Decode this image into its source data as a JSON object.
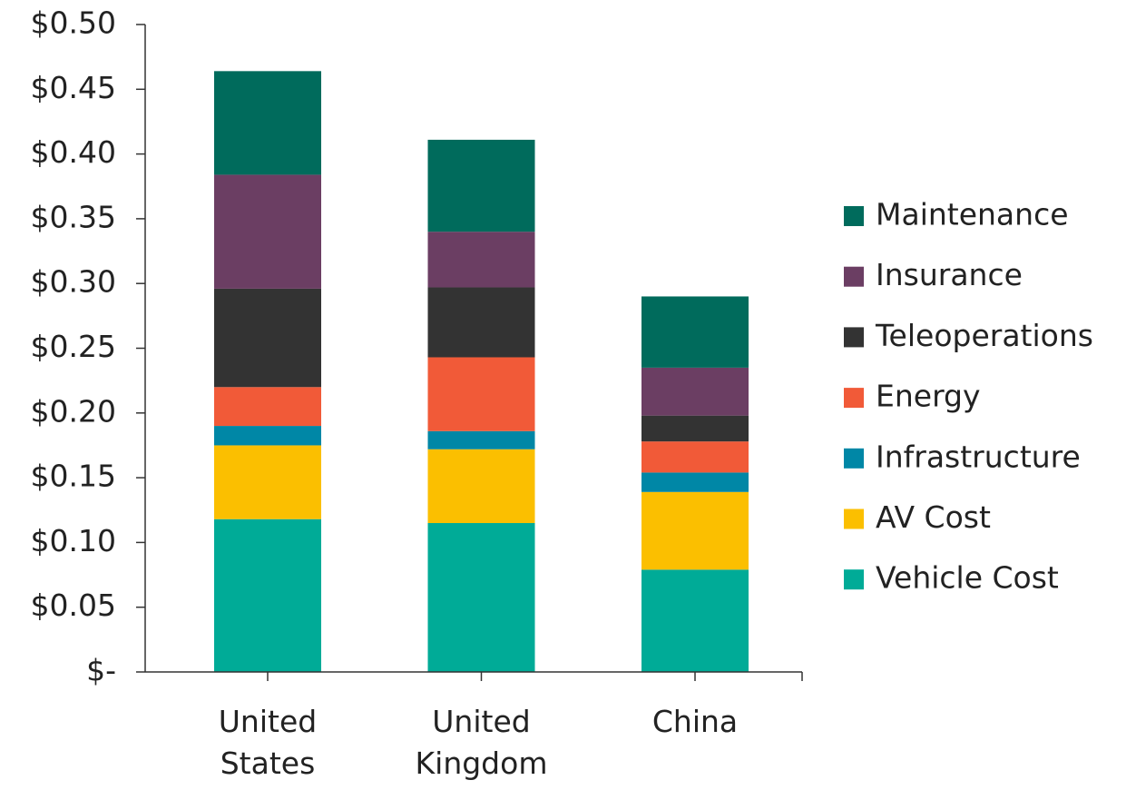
{
  "chart_data": {
    "type": "stacked_bar",
    "categories": [
      "United States",
      "United Kingdom",
      "China"
    ],
    "series": [
      {
        "name": "Vehicle Cost",
        "color": "#00ab97",
        "values": [
          0.118,
          0.115,
          0.079
        ]
      },
      {
        "name": "AV Cost",
        "color": "#fbbf00",
        "values": [
          0.057,
          0.057,
          0.06
        ]
      },
      {
        "name": "Infrastructure",
        "color": "#0087a6",
        "values": [
          0.015,
          0.014,
          0.015
        ]
      },
      {
        "name": "Energy",
        "color": "#f15a38",
        "values": [
          0.03,
          0.057,
          0.024
        ]
      },
      {
        "name": "Teleoperations",
        "color": "#333333",
        "values": [
          0.076,
          0.054,
          0.02
        ]
      },
      {
        "name": "Insurance",
        "color": "#6b3e63",
        "values": [
          0.088,
          0.043,
          0.037
        ]
      },
      {
        "name": "Maintenance",
        "color": "#006b5c",
        "values": [
          0.08,
          0.071,
          0.055
        ]
      }
    ],
    "ylim": [
      0,
      0.5
    ],
    "yticks": [
      {
        "value": 0,
        "label": "$-"
      },
      {
        "value": 0.05,
        "label": "$0.05"
      },
      {
        "value": 0.1,
        "label": "$0.10"
      },
      {
        "value": 0.15,
        "label": "$0.15"
      },
      {
        "value": 0.2,
        "label": "$0.20"
      },
      {
        "value": 0.25,
        "label": "$0.25"
      },
      {
        "value": 0.3,
        "label": "$0.30"
      },
      {
        "value": 0.35,
        "label": "$0.35"
      },
      {
        "value": 0.4,
        "label": "$0.40"
      },
      {
        "value": 0.45,
        "label": "$0.45"
      },
      {
        "value": 0.5,
        "label": "$0.50"
      }
    ],
    "legend": "right"
  }
}
